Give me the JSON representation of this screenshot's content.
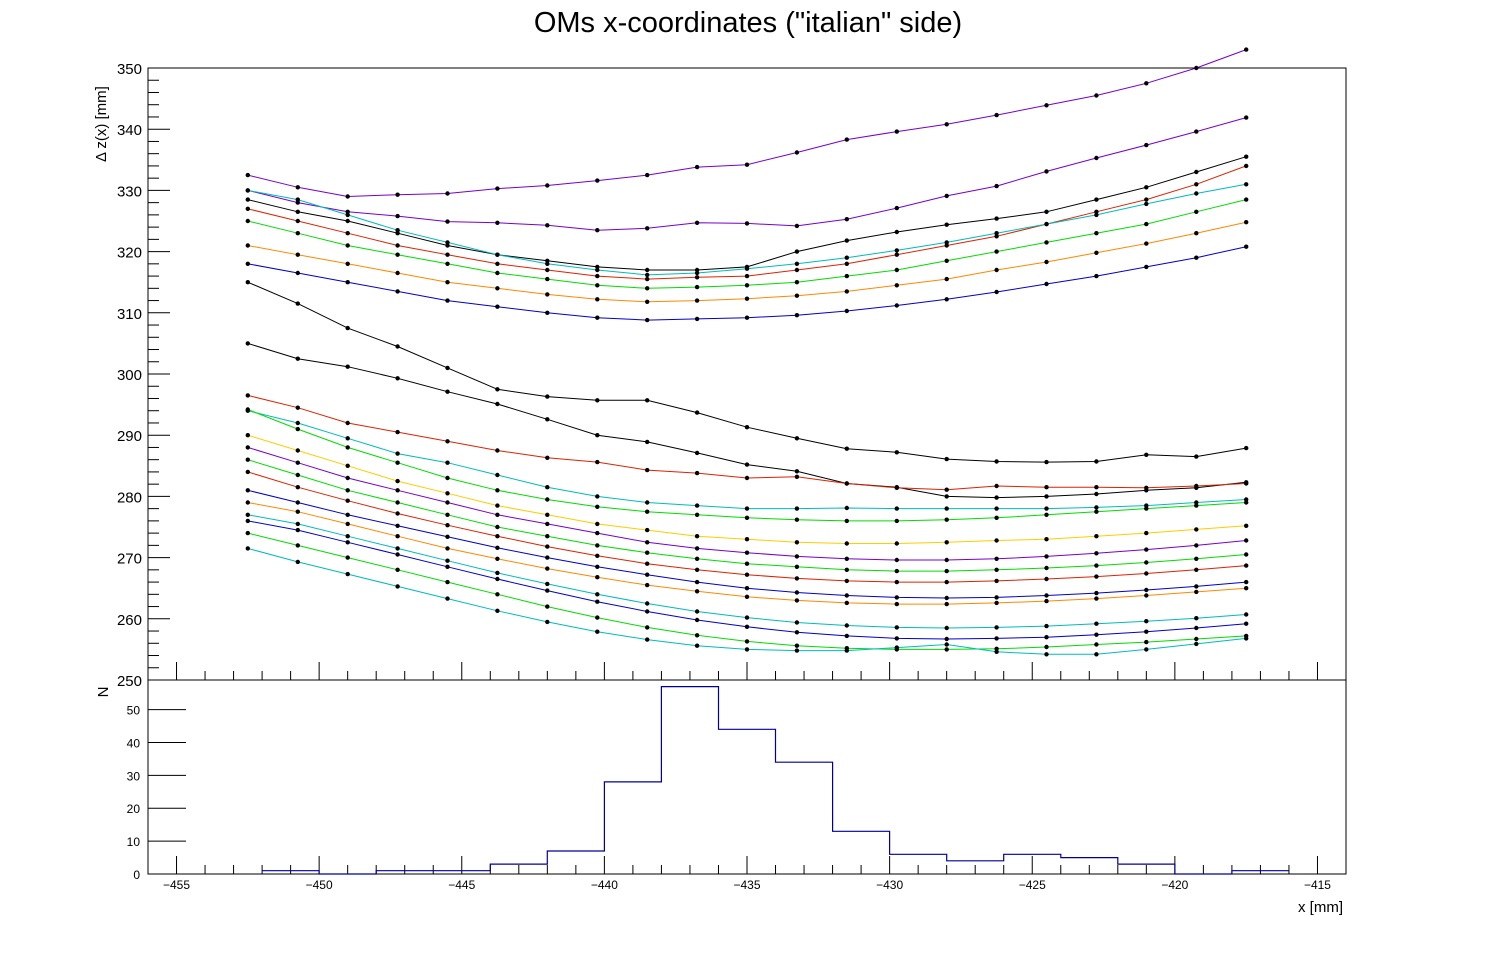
{
  "chart_data": [
    {
      "type": "line",
      "title": "OMs x-coordinates (\"italian\" side)",
      "xlabel": "",
      "ylabel": "Δ z(x) [mm]",
      "xlim": [
        -456,
        -414
      ],
      "ylim": [
        250,
        350
      ],
      "y_ticks": [
        250,
        260,
        270,
        280,
        290,
        300,
        310,
        320,
        330,
        340,
        350
      ],
      "y_tick_labels": [
        "250",
        "260",
        "270",
        "280",
        "290",
        "300",
        "310",
        "320",
        "330",
        "340",
        "350"
      ],
      "x": [
        -452.5,
        -450.75,
        -449.0,
        -447.25,
        -445.5,
        -443.75,
        -442.0,
        -440.25,
        -438.5,
        -436.75,
        -435.0,
        -433.25,
        -431.5,
        -429.75,
        -428.0,
        -426.25,
        -424.5,
        -422.75,
        -421.0,
        -419.25,
        -417.5
      ],
      "series": [
        {
          "color": "#7700cc",
          "values": [
            332.5,
            330.5,
            329,
            329.3,
            329.5,
            330.3,
            330.8,
            331.6,
            332.5,
            333.8,
            334.2,
            336.2,
            338.3,
            339.6,
            340.8,
            342.3,
            343.9,
            345.5,
            347.5,
            350,
            353
          ]
        },
        {
          "color": "#7700cc",
          "values": [
            330,
            328,
            326.5,
            325.8,
            324.9,
            324.7,
            324.3,
            323.5,
            323.8,
            324.7,
            324.6,
            324.2,
            325.3,
            327.1,
            329.1,
            330.7,
            333.1,
            335.3,
            337.4,
            339.6,
            341.9
          ]
        },
        {
          "color": "#000000",
          "values": [
            328.5,
            326.5,
            325,
            323,
            321,
            319.5,
            318.5,
            317.5,
            317,
            317,
            317.5,
            320,
            321.8,
            323.2,
            324.4,
            325.4,
            326.5,
            328.5,
            330.5,
            333,
            335.5
          ]
        },
        {
          "color": "#dd2200",
          "values": [
            327,
            325,
            323,
            321,
            319.5,
            318,
            317,
            316,
            315.5,
            315.8,
            316,
            317,
            318,
            319.5,
            321,
            322.5,
            324.5,
            326.5,
            328.5,
            331,
            334
          ]
        },
        {
          "color": "#00bbbb",
          "values": [
            330,
            328.5,
            326,
            323.5,
            321.5,
            319.5,
            318,
            317,
            316.2,
            316.5,
            317.2,
            318,
            319,
            320.2,
            321.5,
            323,
            324.5,
            326,
            327.8,
            329.5,
            331
          ]
        },
        {
          "color": "#00dd00",
          "values": [
            325,
            323,
            321,
            319.5,
            318,
            316.5,
            315.5,
            314.5,
            314,
            314.2,
            314.5,
            315,
            316,
            317,
            318.5,
            320,
            321.5,
            323,
            324.5,
            326.5,
            328.5
          ]
        },
        {
          "color": "#ff8800",
          "values": [
            321,
            319.5,
            318,
            316.5,
            315,
            314,
            313,
            312.2,
            311.8,
            312,
            312.3,
            312.8,
            313.5,
            314.5,
            315.5,
            317,
            318.3,
            319.8,
            321.3,
            323,
            324.8
          ]
        },
        {
          "color": "#0000cc",
          "values": [
            318,
            316.5,
            315,
            313.5,
            312,
            311,
            310,
            309.2,
            308.8,
            309,
            309.2,
            309.6,
            310.3,
            311.2,
            312.2,
            313.4,
            314.7,
            316,
            317.5,
            319,
            320.8
          ]
        },
        {
          "color": "#000000",
          "values": [
            305,
            302.5,
            301.2,
            299.3,
            297.1,
            295.1,
            292.6,
            290,
            288.9,
            287.1,
            285.2,
            284.1,
            282.1,
            281.5,
            280,
            279.8,
            280,
            280.4,
            281,
            281.4,
            282.3
          ]
        },
        {
          "color": "#000000",
          "values": [
            315,
            311.5,
            307.5,
            304.5,
            301,
            297.5,
            296.3,
            295.7,
            295.7,
            293.7,
            291.3,
            289.5,
            287.8,
            287.2,
            286.1,
            285.7,
            285.6,
            285.7,
            286.8,
            286.5,
            287.9
          ]
        },
        {
          "color": "#dd2200",
          "values": [
            296.5,
            294.5,
            292,
            290.5,
            289,
            287.5,
            286.3,
            285.6,
            284.3,
            283.8,
            283,
            283.2,
            282.1,
            281.4,
            281.1,
            281.7,
            281.5,
            281.5,
            281.4,
            281.7,
            282.1
          ]
        },
        {
          "color": "#00bbbb",
          "values": [
            294,
            292,
            289.5,
            287,
            285.5,
            283.5,
            281.5,
            280,
            279,
            278.5,
            278,
            278,
            278.1,
            278,
            278,
            278,
            278,
            278.2,
            278.5,
            279,
            279.5
          ]
        },
        {
          "color": "#00dd00",
          "values": [
            294.2,
            291,
            288,
            285.5,
            283,
            281,
            279.5,
            278.3,
            277.5,
            277,
            276.5,
            276.2,
            276,
            276,
            276.2,
            276.5,
            277,
            277.5,
            278,
            278.5,
            279
          ]
        },
        {
          "color": "#ffcc00",
          "values": [
            290,
            287.5,
            285,
            282.5,
            280.5,
            278.5,
            277,
            275.5,
            274.5,
            273.5,
            273,
            272.5,
            272.3,
            272.3,
            272.5,
            272.8,
            273,
            273.5,
            274,
            274.6,
            275.2
          ]
        },
        {
          "color": "#7700cc",
          "values": [
            288,
            285.5,
            283,
            281,
            279,
            277,
            275.5,
            274,
            272.5,
            271.5,
            270.8,
            270.2,
            269.8,
            269.6,
            269.6,
            269.8,
            270.2,
            270.7,
            271.3,
            272,
            272.8
          ]
        },
        {
          "color": "#00dd00",
          "values": [
            286,
            283.5,
            281,
            279,
            277,
            275,
            273.5,
            272,
            270.8,
            269.8,
            269,
            268.5,
            268,
            267.8,
            267.8,
            268,
            268.3,
            268.7,
            269.2,
            269.8,
            270.5
          ]
        },
        {
          "color": "#dd2200",
          "values": [
            284,
            281.5,
            279.3,
            277.2,
            275.3,
            273.5,
            271.8,
            270.3,
            269,
            268,
            267.2,
            266.6,
            266.2,
            266,
            266,
            266.2,
            266.5,
            266.9,
            267.4,
            268,
            268.7
          ]
        },
        {
          "color": "#0000cc",
          "values": [
            281,
            279,
            277,
            275.2,
            273.4,
            271.6,
            270,
            268.5,
            267.2,
            266,
            265,
            264.3,
            263.8,
            263.5,
            263.4,
            263.5,
            263.8,
            264.2,
            264.7,
            265.3,
            266
          ]
        },
        {
          "color": "#ff8800",
          "values": [
            279,
            277.5,
            275.5,
            273.5,
            271.5,
            269.8,
            268.2,
            266.8,
            265.5,
            264.5,
            263.6,
            263,
            262.6,
            262.4,
            262.4,
            262.6,
            262.9,
            263.3,
            263.8,
            264.4,
            265
          ]
        },
        {
          "color": "#00bbbb",
          "values": [
            277,
            275.5,
            273.5,
            271.5,
            269.5,
            267.5,
            265.7,
            264,
            262.5,
            261.2,
            260.2,
            259.4,
            258.9,
            258.6,
            258.5,
            258.6,
            258.8,
            259.2,
            259.6,
            260.1,
            260.7
          ]
        },
        {
          "color": "#0000cc",
          "values": [
            276,
            274.5,
            272.5,
            270.5,
            268.5,
            266.5,
            264.6,
            262.8,
            261.2,
            259.8,
            258.7,
            257.8,
            257.2,
            256.8,
            256.7,
            256.8,
            257,
            257.4,
            257.9,
            258.5,
            259.2
          ]
        },
        {
          "color": "#00dd00",
          "values": [
            274,
            272,
            270,
            268,
            266,
            264,
            262,
            260.2,
            258.6,
            257.3,
            256.3,
            255.6,
            255.2,
            255,
            255,
            255.1,
            255.4,
            255.8,
            256.2,
            256.7,
            257.2
          ]
        },
        {
          "color": "#00bbbb",
          "values": [
            271.5,
            269.3,
            267.3,
            265.3,
            263.3,
            261.3,
            259.5,
            257.9,
            256.6,
            255.6,
            255,
            254.8,
            254.8,
            255.3,
            255.8,
            254.6,
            254.2,
            254.2,
            255,
            255.9,
            256.8
          ]
        }
      ]
    },
    {
      "type": "histogram",
      "xlabel": "x [mm]",
      "ylabel": "N",
      "xlim": [
        -456,
        -414
      ],
      "ylim": [
        0,
        59
      ],
      "y_ticks": [
        0,
        10,
        20,
        30,
        40,
        50
      ],
      "y_tick_labels": [
        "0",
        "10",
        "20",
        "30",
        "40",
        "50"
      ],
      "x_ticks": [
        -455,
        -450,
        -445,
        -440,
        -435,
        -430,
        -425,
        -420,
        -415
      ],
      "x_tick_labels": [
        "−455",
        "−450",
        "−445",
        "−440",
        "−435",
        "−430",
        "−425",
        "−420",
        "−415"
      ],
      "bin_edges": [
        -452,
        -450,
        -448,
        -446,
        -444,
        -442,
        -440,
        -438,
        -436,
        -434,
        -432,
        -430,
        -428,
        -426,
        -424,
        -422,
        -420,
        -418,
        -416
      ],
      "values": [
        1,
        0,
        1,
        1,
        3,
        7,
        28,
        57,
        44,
        34,
        13,
        6,
        4,
        6,
        5,
        3,
        0,
        1
      ],
      "color": "#000099"
    }
  ]
}
